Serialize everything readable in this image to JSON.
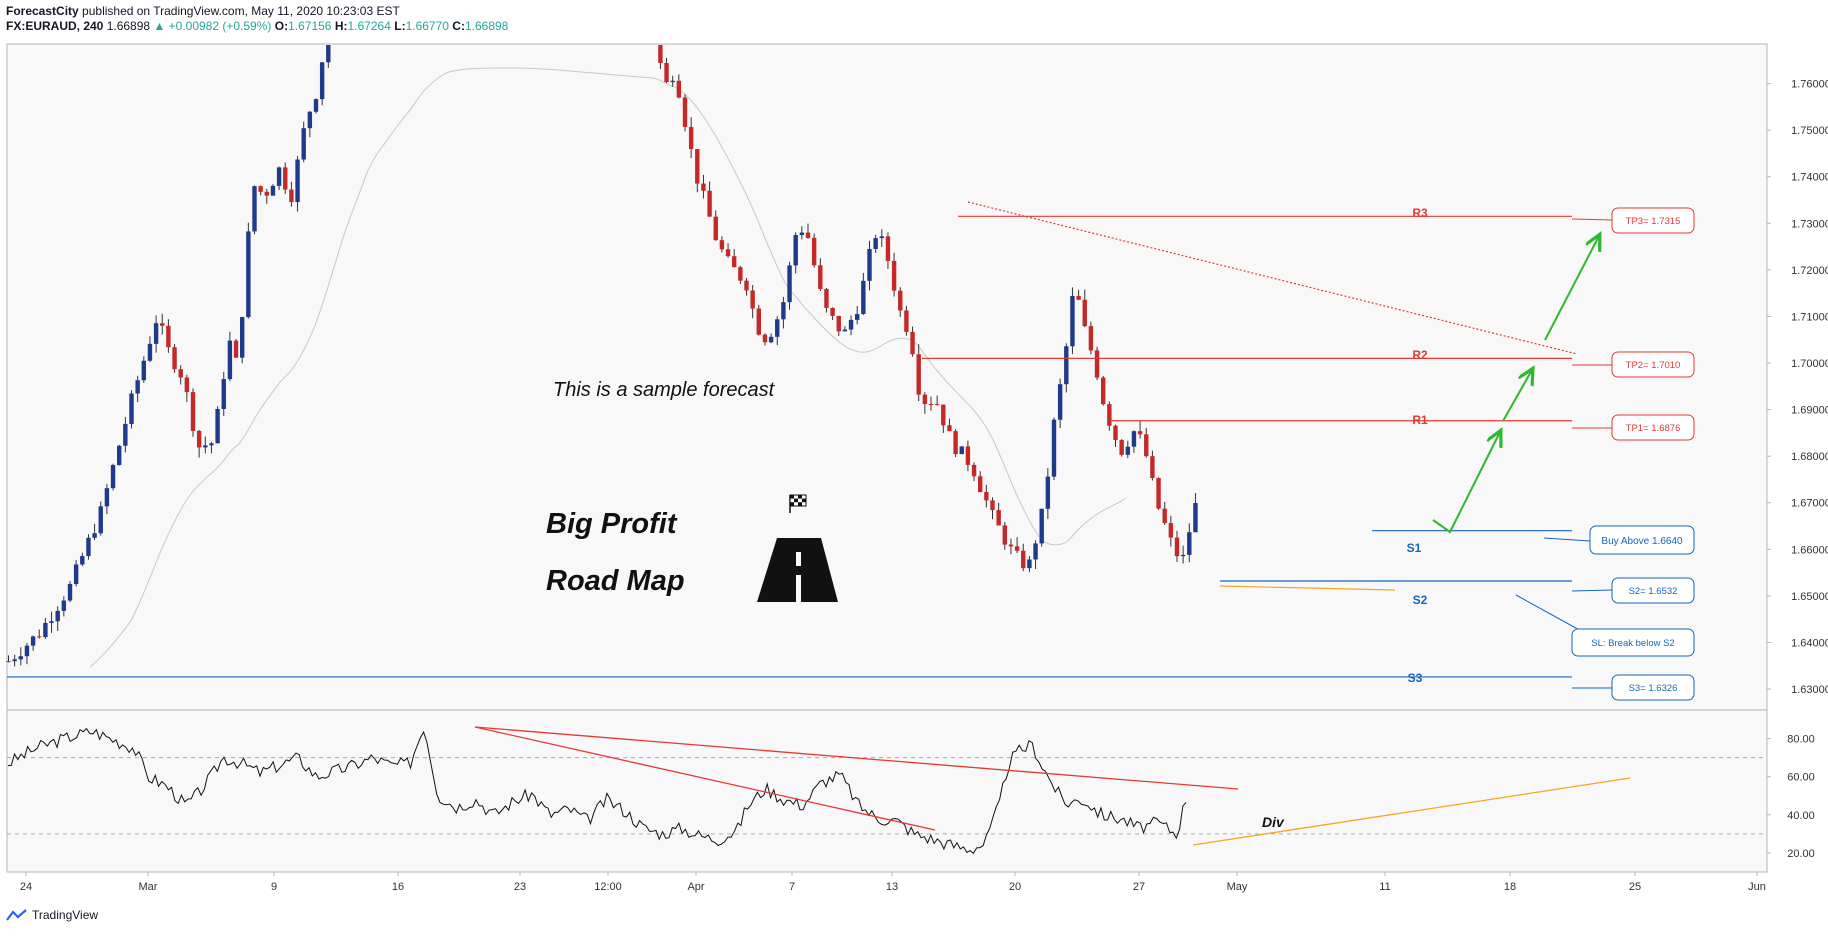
{
  "header": {
    "publisher": "ForecastCity",
    "published_text": "published on TradingView.com, May 11, 2020 10:23:03 EST",
    "symbol": "FX:EURAUD, 240",
    "last": "1.66898",
    "change": "▲ +0.00982 (+0.59%)",
    "o_label": "O:",
    "o": "1.67156",
    "h_label": "H:",
    "h": "1.67264",
    "l_label": "L:",
    "l": "1.66770",
    "c_label": "C:",
    "c": "1.66898"
  },
  "annotations": {
    "sample": "This is a sample forecast",
    "big_profit": "Big Profit",
    "road_map": "Road Map",
    "div": "Div"
  },
  "levels": {
    "r3": "R3",
    "r2": "R2",
    "r1": "R1",
    "s1": "S1",
    "s2": "S2",
    "s3": "S3"
  },
  "callouts": {
    "tp3": "TP3= 1.7315",
    "tp2": "TP2= 1.7010",
    "tp1": "TP1= 1.6876",
    "buy": "Buy Above 1.6640",
    "s2": "S2= 1.6532",
    "sl": "SL: Break below S2",
    "s3": "S3= 1.6326"
  },
  "footer": {
    "brand": "TradingView"
  },
  "colors": {
    "up": "#26a69a",
    "down": "#ef5350",
    "candle_up": "#1e3a8a",
    "candle_down": "#c62828",
    "resistance": "#e53935",
    "support": "#1565c0",
    "arrow": "#2db82d",
    "trend_orange": "#f5a623"
  },
  "chart_data": {
    "type": "candlestick",
    "symbol": "FX:EURAUD",
    "timeframe": "240",
    "price_axis": {
      "ylim": [
        1.6255,
        1.7685
      ],
      "ticks": [
        "1.76000",
        "1.75000",
        "1.74000",
        "1.73000",
        "1.72000",
        "1.71000",
        "1.70000",
        "1.69000",
        "1.68000",
        "1.67000",
        "1.66000",
        "1.65000",
        "1.64000",
        "1.63000"
      ]
    },
    "time_axis": {
      "ticks": [
        "24",
        "Mar",
        "9",
        "16",
        "23",
        "12:00",
        "Apr",
        "7",
        "13",
        "20",
        "27",
        "May",
        "11",
        "18",
        "25",
        "Jun"
      ]
    },
    "price_path": [
      {
        "d": 0,
        "p": 1.636
      },
      {
        "d": 3,
        "p": 1.642
      },
      {
        "d": 6,
        "p": 1.652
      },
      {
        "d": 9,
        "p": 1.668
      },
      {
        "d": 12,
        "p": 1.692
      },
      {
        "d": 14.5,
        "p": 1.71
      },
      {
        "d": 15.5,
        "p": 1.703
      },
      {
        "d": 17,
        "p": 1.697
      },
      {
        "d": 18.5,
        "p": 1.682
      },
      {
        "d": 20,
        "p": 1.683
      },
      {
        "d": 21.5,
        "p": 1.705
      },
      {
        "d": 22.5,
        "p": 1.698
      },
      {
        "d": 23,
        "p": 1.72
      },
      {
        "d": 24,
        "p": 1.738
      },
      {
        "d": 25,
        "p": 1.736
      },
      {
        "d": 26.5,
        "p": 1.742
      },
      {
        "d": 27.5,
        "p": 1.735
      },
      {
        "d": 29,
        "p": 1.752
      },
      {
        "d": 30,
        "p": 1.758
      },
      {
        "d": 31,
        "p": 1.77
      },
      {
        "d": 33,
        "p": 1.774
      },
      {
        "d": 42,
        "p": 1.776
      },
      {
        "d": 63,
        "p": 1.772
      },
      {
        "d": 64,
        "p": 1.759
      },
      {
        "d": 65,
        "p": 1.763
      },
      {
        "d": 67,
        "p": 1.741
      },
      {
        "d": 69,
        "p": 1.727
      },
      {
        "d": 70,
        "p": 1.722
      },
      {
        "d": 72,
        "p": 1.717
      },
      {
        "d": 73,
        "p": 1.708
      },
      {
        "d": 74,
        "p": 1.705
      },
      {
        "d": 75.5,
        "p": 1.712
      },
      {
        "d": 77,
        "p": 1.73
      },
      {
        "d": 78,
        "p": 1.727
      },
      {
        "d": 79.5,
        "p": 1.712
      },
      {
        "d": 81.5,
        "p": 1.706
      },
      {
        "d": 83,
        "p": 1.713
      },
      {
        "d": 84.5,
        "p": 1.728
      },
      {
        "d": 85.5,
        "p": 1.725
      },
      {
        "d": 87,
        "p": 1.711
      },
      {
        "d": 88,
        "p": 1.706
      },
      {
        "d": 89,
        "p": 1.692
      },
      {
        "d": 90.5,
        "p": 1.692
      },
      {
        "d": 92,
        "p": 1.683
      },
      {
        "d": 94,
        "p": 1.678
      },
      {
        "d": 96,
        "p": 1.667
      },
      {
        "d": 98,
        "p": 1.659
      },
      {
        "d": 99.5,
        "p": 1.656
      },
      {
        "d": 101,
        "p": 1.669
      },
      {
        "d": 102,
        "p": 1.687
      },
      {
        "d": 103,
        "p": 1.7
      },
      {
        "d": 104,
        "p": 1.717
      },
      {
        "d": 105,
        "p": 1.707
      },
      {
        "d": 106,
        "p": 1.7
      },
      {
        "d": 107,
        "p": 1.69
      },
      {
        "d": 108.5,
        "p": 1.681
      },
      {
        "d": 110,
        "p": 1.686
      },
      {
        "d": 111,
        "p": 1.68
      },
      {
        "d": 112,
        "p": 1.67
      },
      {
        "d": 113.5,
        "p": 1.661
      },
      {
        "d": 114.5,
        "p": 1.657
      },
      {
        "d": 115.3,
        "p": 1.665
      },
      {
        "d": 116,
        "p": 1.671
      }
    ],
    "horizontal_levels": [
      {
        "name": "R3",
        "value": 1.7315
      },
      {
        "name": "R2",
        "value": 1.701
      },
      {
        "name": "R1",
        "value": 1.6876
      },
      {
        "name": "S1",
        "value": 1.664
      },
      {
        "name": "S2",
        "value": 1.6532
      },
      {
        "name": "S3",
        "value": 1.6326
      }
    ],
    "take_profit": [
      1.6876,
      1.701,
      1.7315
    ],
    "rsi": {
      "ylim": [
        10,
        95
      ],
      "ticks": [
        "80.00",
        "60.00",
        "40.00",
        "20.00"
      ],
      "bands": [
        70,
        30
      ],
      "path": [
        {
          "d": 0,
          "p": 67
        },
        {
          "d": 3,
          "p": 75
        },
        {
          "d": 6,
          "p": 80
        },
        {
          "d": 9,
          "p": 84
        },
        {
          "d": 11,
          "p": 80
        },
        {
          "d": 13.5,
          "p": 75
        },
        {
          "d": 15,
          "p": 60
        },
        {
          "d": 17,
          "p": 55
        },
        {
          "d": 19,
          "p": 45
        },
        {
          "d": 20.5,
          "p": 52
        },
        {
          "d": 22,
          "p": 62
        },
        {
          "d": 23,
          "p": 70
        },
        {
          "d": 25,
          "p": 67
        },
        {
          "d": 27,
          "p": 62
        },
        {
          "d": 29,
          "p": 66
        },
        {
          "d": 31,
          "p": 70
        },
        {
          "d": 33,
          "p": 60
        },
        {
          "d": 35,
          "p": 63
        },
        {
          "d": 37,
          "p": 66
        },
        {
          "d": 39,
          "p": 70
        },
        {
          "d": 41,
          "p": 66
        },
        {
          "d": 43,
          "p": 67
        },
        {
          "d": 44.5,
          "p": 87
        },
        {
          "d": 46,
          "p": 50
        },
        {
          "d": 48,
          "p": 44
        },
        {
          "d": 50,
          "p": 48
        },
        {
          "d": 52,
          "p": 40
        },
        {
          "d": 54,
          "p": 47
        },
        {
          "d": 56,
          "p": 51
        },
        {
          "d": 58,
          "p": 40
        },
        {
          "d": 60,
          "p": 43
        },
        {
          "d": 62,
          "p": 37
        },
        {
          "d": 64,
          "p": 48
        },
        {
          "d": 66,
          "p": 42
        },
        {
          "d": 68,
          "p": 33
        },
        {
          "d": 70,
          "p": 30
        },
        {
          "d": 72,
          "p": 33
        },
        {
          "d": 74,
          "p": 29
        },
        {
          "d": 76,
          "p": 27
        },
        {
          "d": 78,
          "p": 32
        },
        {
          "d": 79,
          "p": 44
        },
        {
          "d": 81,
          "p": 54
        },
        {
          "d": 83,
          "p": 48
        },
        {
          "d": 85,
          "p": 45
        },
        {
          "d": 87,
          "p": 57
        },
        {
          "d": 89,
          "p": 61
        },
        {
          "d": 91,
          "p": 45
        },
        {
          "d": 93,
          "p": 38
        },
        {
          "d": 95,
          "p": 37
        },
        {
          "d": 97,
          "p": 30
        },
        {
          "d": 99,
          "p": 27
        },
        {
          "d": 101,
          "p": 24
        },
        {
          "d": 103,
          "p": 22
        },
        {
          "d": 104.5,
          "p": 25
        },
        {
          "d": 106,
          "p": 45
        },
        {
          "d": 107,
          "p": 67
        },
        {
          "d": 108,
          "p": 73
        },
        {
          "d": 109.5,
          "p": 77
        },
        {
          "d": 111,
          "p": 62
        },
        {
          "d": 113,
          "p": 46
        },
        {
          "d": 115,
          "p": 48
        },
        {
          "d": 117,
          "p": 40
        },
        {
          "d": 119,
          "p": 38
        },
        {
          "d": 121,
          "p": 33
        },
        {
          "d": 123,
          "p": 36
        },
        {
          "d": 125,
          "p": 30
        },
        {
          "d": 126,
          "p": 49
        }
      ]
    }
  }
}
